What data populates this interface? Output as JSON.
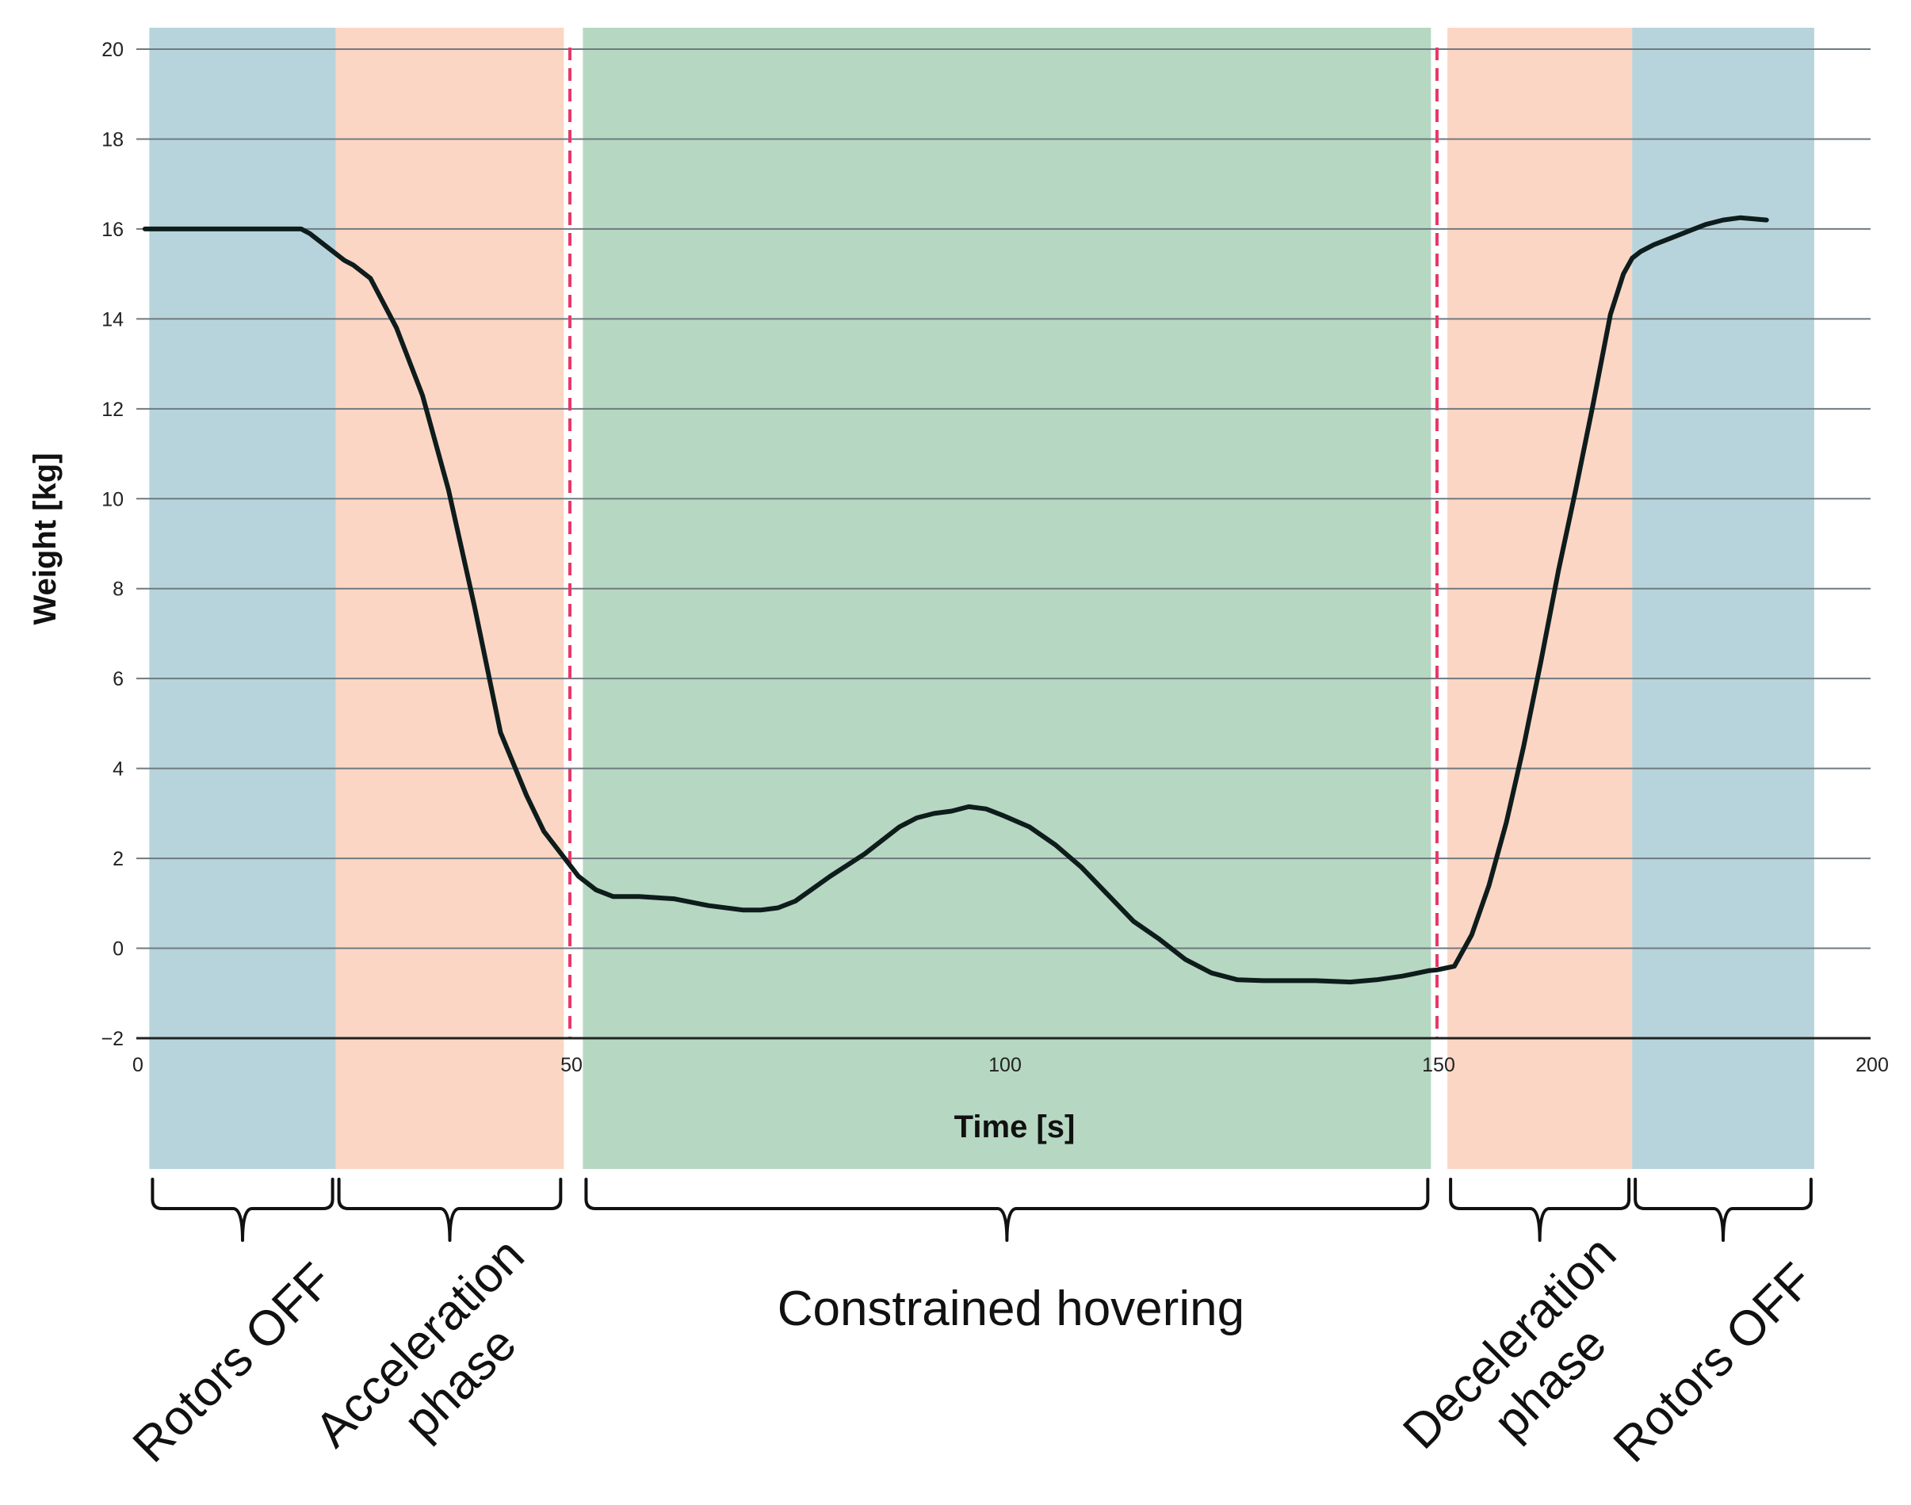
{
  "chart_data": {
    "type": "line",
    "title": "",
    "xlabel": "Time [s]",
    "ylabel": "Weight [kg]",
    "xlim": [
      0,
      200
    ],
    "ylim": [
      -2,
      20
    ],
    "xticks": [
      0,
      50,
      100,
      150,
      200
    ],
    "yticks": [
      -2,
      0,
      2,
      4,
      6,
      8,
      10,
      12,
      14,
      16,
      18,
      20
    ],
    "grid": "horizontal",
    "legend": "none",
    "line_color": "#0e1c1c",
    "divider_color": "#e8386a",
    "dividers_x": [
      50,
      150
    ],
    "phases": [
      {
        "label": "Rotors OFF",
        "start": 1.5,
        "end": 23,
        "color": "#b7d4dc"
      },
      {
        "label": "Acceleration phase",
        "label_lines": [
          "Acceleration",
          "phase"
        ],
        "start": 23,
        "end": 49.3,
        "color": "#fcd6c4"
      },
      {
        "label": "Constrained hovering",
        "start": 51.5,
        "end": 149.3,
        "color": "#b6d7c1"
      },
      {
        "label": "Deceleration phase",
        "label_lines": [
          "Deceleration",
          "phase"
        ],
        "start": 151.2,
        "end": 172.5,
        "color": "#fcd6c4"
      },
      {
        "label": "Rotors OFF",
        "start": 172.5,
        "end": 193.5,
        "color": "#b7d4dc"
      }
    ],
    "series": [
      {
        "x": [
          1,
          10,
          18,
          19,
          20,
          22,
          24,
          25,
          27,
          30,
          33,
          36,
          39,
          42,
          45,
          47,
          49,
          51,
          53,
          55,
          58,
          62,
          66,
          70,
          72,
          74,
          76,
          80,
          84,
          88,
          90,
          92,
          94,
          96,
          98,
          100,
          103,
          106,
          109,
          112,
          115,
          118,
          121,
          124,
          127,
          130,
          133,
          136,
          140,
          143,
          146,
          149,
          150,
          152,
          154,
          156,
          158,
          160,
          162,
          164,
          166,
          168,
          170,
          171.5,
          172.5,
          173.5,
          175,
          177,
          179,
          181,
          183,
          185,
          188
        ],
        "y": [
          16.0,
          16.0,
          16.0,
          16.0,
          15.9,
          15.6,
          15.3,
          15.2,
          14.9,
          13.8,
          12.3,
          10.2,
          7.6,
          4.8,
          3.4,
          2.6,
          2.1,
          1.6,
          1.3,
          1.15,
          1.15,
          1.1,
          0.95,
          0.85,
          0.85,
          0.9,
          1.05,
          1.6,
          2.1,
          2.7,
          2.9,
          3.0,
          3.05,
          3.15,
          3.1,
          2.95,
          2.7,
          2.3,
          1.8,
          1.2,
          0.6,
          0.2,
          -0.25,
          -0.55,
          -0.7,
          -0.72,
          -0.72,
          -0.72,
          -0.75,
          -0.7,
          -0.62,
          -0.5,
          -0.48,
          -0.4,
          0.3,
          1.4,
          2.8,
          4.5,
          6.4,
          8.4,
          10.2,
          12.1,
          14.1,
          15.0,
          15.35,
          15.5,
          15.65,
          15.8,
          15.95,
          16.1,
          16.2,
          16.25,
          16.2
        ]
      }
    ]
  }
}
